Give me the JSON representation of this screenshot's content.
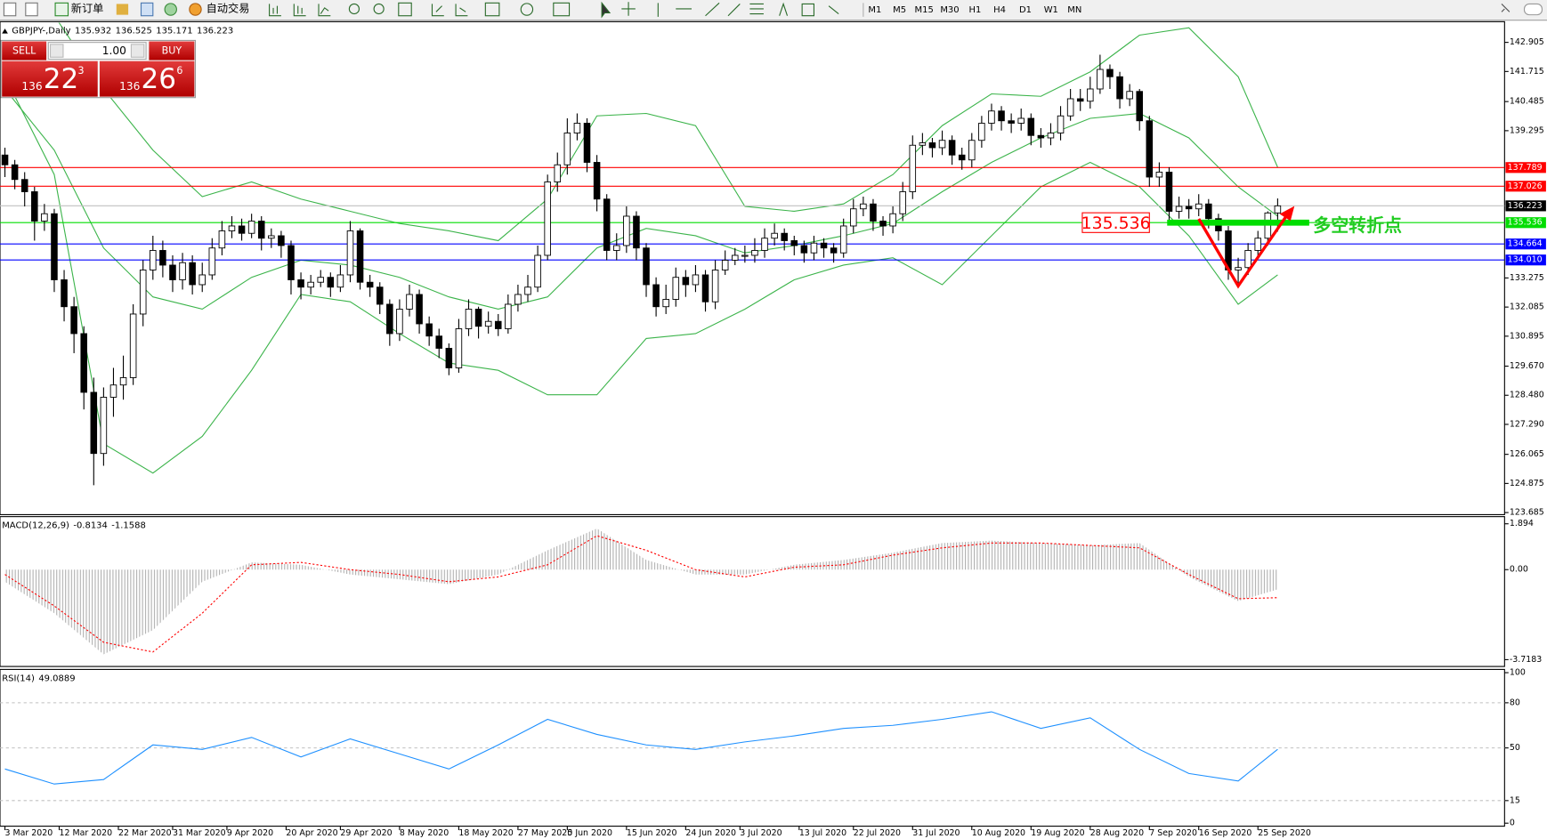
{
  "toolbar": {
    "new_order": "新订单",
    "auto_trading": "自动交易",
    "timeframes": [
      "M1",
      "M5",
      "M15",
      "M30",
      "H1",
      "H4",
      "D1",
      "W1",
      "MN"
    ]
  },
  "trade_panel": {
    "sell": "SELL",
    "buy": "BUY",
    "lots": "1.00",
    "bid": [
      "136",
      "22",
      "3"
    ],
    "ask": [
      "136",
      "26",
      "6"
    ]
  },
  "chart_data": [
    {
      "type": "candlestick",
      "title": "GBPJPY-,Daily",
      "header_values": [
        135.932,
        136.525,
        135.171,
        136.223
      ],
      "open": [
        138.3,
        137.9,
        137.3,
        136.8,
        135.6,
        135.9,
        133.2,
        132.1,
        131.0,
        128.6,
        126.1,
        128.4,
        128.9,
        129.2,
        131.8,
        133.6,
        134.4,
        133.8,
        133.2,
        133.9,
        133.0,
        133.4,
        134.5,
        135.2,
        135.4,
        135.1,
        135.6,
        134.9,
        135.0,
        134.6,
        133.2,
        132.9,
        133.1,
        133.3,
        132.9,
        133.4,
        135.2,
        133.1,
        132.9,
        132.2,
        131.0,
        132.0,
        132.6,
        131.4,
        130.9,
        130.4,
        129.6,
        131.2,
        132.0,
        131.3,
        131.5,
        131.2,
        132.2,
        132.6,
        132.9,
        134.2,
        137.2,
        137.9,
        139.2,
        139.6,
        138.0,
        136.5,
        134.4,
        134.6,
        135.8,
        134.5,
        133.0,
        132.1,
        132.4,
        133.3,
        133.0,
        133.4,
        132.3,
        133.6,
        134.0,
        134.2,
        134.2,
        134.4,
        134.9,
        135.1,
        134.8,
        134.6,
        134.3,
        134.7,
        134.5,
        134.3,
        135.4,
        136.1,
        136.3,
        135.6,
        135.4,
        135.9,
        136.8,
        138.7,
        138.8,
        138.6,
        138.9,
        138.3,
        138.1,
        138.9,
        139.6,
        140.1,
        139.7,
        139.6,
        139.8,
        139.1,
        139.0,
        139.2,
        139.9,
        140.6,
        140.5,
        141.0,
        141.8,
        141.5,
        140.6,
        140.9,
        139.7,
        137.4,
        137.6,
        136.0,
        136.2,
        136.1,
        136.3,
        135.7,
        135.2,
        133.6,
        133.7,
        134.4,
        134.9,
        135.932
      ],
      "high": [
        138.6,
        138.1,
        137.6,
        137.0,
        136.3,
        136.1,
        133.6,
        132.5,
        131.3,
        129.2,
        128.8,
        129.6,
        130.1,
        132.2,
        134.0,
        135.0,
        134.8,
        134.2,
        134.3,
        134.2,
        133.9,
        134.9,
        135.6,
        135.8,
        135.7,
        135.9,
        135.8,
        135.3,
        135.2,
        134.8,
        133.5,
        133.4,
        133.6,
        133.5,
        133.8,
        135.6,
        135.3,
        133.4,
        133.1,
        132.4,
        132.4,
        133.0,
        132.8,
        131.7,
        131.2,
        130.6,
        131.6,
        132.4,
        132.1,
        131.9,
        131.8,
        132.6,
        133.0,
        133.4,
        134.6,
        137.5,
        138.4,
        139.8,
        140.0,
        139.8,
        138.3,
        136.7,
        135.1,
        136.2,
        136.0,
        134.7,
        133.3,
        133.0,
        133.7,
        133.6,
        133.8,
        133.6,
        134.0,
        134.4,
        134.5,
        134.6,
        134.9,
        135.3,
        135.5,
        135.3,
        135.0,
        134.8,
        135.0,
        134.9,
        134.7,
        135.7,
        136.5,
        136.6,
        136.5,
        135.8,
        136.2,
        137.2,
        139.1,
        139.2,
        139.0,
        139.3,
        139.1,
        138.6,
        139.2,
        139.9,
        140.4,
        140.3,
        140.0,
        140.2,
        140.0,
        139.4,
        139.6,
        140.3,
        141.0,
        141.0,
        141.5,
        142.4,
        142.0,
        141.7,
        141.2,
        141.0,
        139.9,
        138.0,
        137.8,
        136.6,
        136.5,
        136.7,
        136.5,
        135.9,
        135.4,
        134.1,
        134.7,
        135.2,
        136.0,
        136.525
      ],
      "low": [
        137.4,
        136.9,
        136.2,
        134.8,
        135.2,
        132.7,
        131.5,
        130.2,
        127.9,
        124.8,
        125.6,
        127.6,
        128.3,
        128.9,
        131.3,
        133.2,
        133.3,
        132.7,
        132.8,
        132.6,
        132.7,
        133.2,
        134.2,
        134.9,
        134.8,
        134.9,
        134.4,
        134.5,
        134.1,
        132.6,
        132.4,
        132.6,
        132.9,
        132.5,
        132.7,
        133.1,
        132.8,
        132.5,
        131.8,
        130.5,
        130.7,
        131.7,
        131.0,
        130.5,
        130.0,
        129.3,
        129.4,
        130.9,
        130.8,
        131.0,
        130.9,
        131.0,
        131.9,
        132.3,
        132.7,
        134.0,
        136.8,
        137.5,
        138.9,
        137.6,
        136.0,
        134.0,
        134.0,
        134.3,
        134.0,
        132.5,
        131.7,
        131.8,
        132.1,
        132.5,
        132.7,
        131.9,
        132.0,
        133.4,
        133.8,
        133.9,
        133.9,
        134.1,
        134.6,
        134.4,
        134.2,
        133.9,
        134.0,
        134.1,
        133.9,
        134.1,
        135.1,
        135.8,
        135.2,
        135.0,
        135.1,
        135.6,
        136.5,
        138.3,
        138.2,
        138.3,
        137.9,
        137.7,
        137.8,
        138.6,
        139.3,
        139.3,
        139.2,
        139.3,
        138.7,
        138.6,
        138.7,
        138.9,
        139.7,
        140.1,
        140.2,
        140.8,
        141.0,
        140.2,
        140.3,
        139.3,
        137.0,
        137.0,
        135.6,
        135.7,
        135.7,
        135.8,
        135.3,
        134.8,
        133.2,
        132.9,
        133.4,
        134.1,
        134.6,
        135.171
      ],
      "close": [
        137.9,
        137.3,
        136.8,
        135.6,
        135.9,
        133.2,
        132.1,
        131.0,
        128.6,
        126.1,
        128.4,
        128.9,
        129.2,
        131.8,
        133.6,
        134.4,
        133.8,
        133.2,
        133.9,
        133.0,
        133.4,
        134.5,
        135.2,
        135.4,
        135.1,
        135.6,
        134.9,
        135.0,
        134.6,
        133.2,
        132.9,
        133.1,
        133.3,
        132.9,
        133.4,
        135.2,
        133.1,
        132.9,
        132.2,
        131.0,
        132.0,
        132.6,
        131.4,
        130.9,
        130.4,
        129.6,
        131.2,
        132.0,
        131.3,
        131.5,
        131.2,
        132.2,
        132.6,
        132.9,
        134.2,
        137.2,
        137.9,
        139.2,
        139.6,
        138.0,
        136.5,
        134.4,
        134.6,
        135.8,
        134.5,
        133.0,
        132.1,
        132.4,
        133.3,
        133.0,
        133.4,
        132.3,
        133.6,
        134.0,
        134.2,
        134.2,
        134.4,
        134.9,
        135.1,
        134.8,
        134.6,
        134.3,
        134.7,
        134.5,
        134.3,
        135.4,
        136.1,
        136.3,
        135.6,
        135.4,
        135.9,
        136.8,
        138.7,
        138.8,
        138.6,
        138.9,
        138.3,
        138.1,
        138.9,
        139.6,
        140.1,
        139.7,
        139.6,
        139.8,
        139.1,
        139.0,
        139.2,
        139.9,
        140.6,
        140.5,
        141.0,
        141.8,
        141.5,
        140.6,
        140.9,
        139.7,
        137.4,
        137.6,
        136.0,
        136.2,
        136.1,
        136.3,
        135.7,
        135.2,
        133.6,
        133.7,
        134.4,
        134.9,
        135.932,
        136.223
      ],
      "bands": {
        "color": "#3cb44b",
        "x": [
          0,
          5,
          10,
          15,
          20,
          25,
          30,
          35,
          40,
          45,
          50,
          55,
          60,
          65,
          70,
          75,
          80,
          85,
          90,
          95,
          100,
          105,
          110,
          115,
          120,
          125,
          129
        ],
        "upper": [
          144.5,
          144.0,
          141.0,
          138.5,
          136.6,
          137.2,
          136.5,
          136.0,
          135.5,
          135.2,
          134.8,
          136.5,
          139.9,
          140.0,
          139.5,
          136.2,
          136.0,
          136.3,
          137.5,
          139.5,
          140.8,
          140.7,
          141.7,
          143.2,
          143.5,
          141.5,
          137.8
        ],
        "middle": [
          141.0,
          138.5,
          134.5,
          132.5,
          132.0,
          133.3,
          134.0,
          133.8,
          133.3,
          132.5,
          132.0,
          132.5,
          134.5,
          135.3,
          135.0,
          134.3,
          134.6,
          135.0,
          135.5,
          136.8,
          138.0,
          139.0,
          139.8,
          140.0,
          139.0,
          137.0,
          135.8
        ],
        "lower": [
          141.5,
          137.5,
          126.5,
          125.3,
          126.8,
          129.5,
          132.6,
          132.3,
          131.0,
          129.8,
          129.5,
          128.5,
          128.5,
          130.8,
          131.0,
          132.0,
          133.2,
          133.8,
          134.1,
          133.0,
          135.0,
          137.0,
          138.0,
          137.0,
          135.0,
          132.2,
          133.4
        ]
      },
      "hlines": [
        {
          "value": 137.789,
          "color": "#ff0000"
        },
        {
          "value": 137.026,
          "color": "#ff0000"
        },
        {
          "value": 136.223,
          "color": "#c0c0c0",
          "tag_color": "#000000"
        },
        {
          "value": 135.536,
          "color": "#00dd00"
        },
        {
          "value": 134.664,
          "color": "#0000ff"
        },
        {
          "value": 134.01,
          "label": "134.010",
          "color": "#0000ff"
        }
      ],
      "turning_point_label": "多空转折点",
      "xlim": [
        -0.5,
        152
      ],
      "xticks": [
        {
          "value": 0,
          "label": "3 Mar 2020"
        },
        {
          "value": 5.5,
          "label": "12 Mar 2020"
        },
        {
          "value": 11.5,
          "label": "22 Mar 2020"
        },
        {
          "value": 17,
          "label": "31 Mar 2020"
        },
        {
          "value": 22.5,
          "label": "9 Apr 2020"
        },
        {
          "value": 28.5,
          "label": "20 Apr 2020"
        },
        {
          "value": 34,
          "label": "29 Apr 2020"
        },
        {
          "value": 40,
          "label": "8 May 2020"
        },
        {
          "value": 46,
          "label": "18 May 2020"
        },
        {
          "value": 52,
          "label": "27 May 2020"
        },
        {
          "value": 57,
          "label": "5 Jun 2020"
        },
        {
          "value": 63,
          "label": "15 Jun 2020"
        },
        {
          "value": 69,
          "label": "24 Jun 2020"
        },
        {
          "value": 74.5,
          "label": "3 Jul 2020"
        },
        {
          "value": 80.5,
          "label": "13 Jul 2020"
        },
        {
          "value": 86,
          "label": "22 Jul 2020"
        },
        {
          "value": 92,
          "label": "31 Jul 2020"
        },
        {
          "value": 98,
          "label": "10 Aug 2020"
        },
        {
          "value": 104,
          "label": "19 Aug 2020"
        },
        {
          "value": 110,
          "label": "28 Aug 2020"
        },
        {
          "value": 116,
          "label": "7 Sep 2020"
        },
        {
          "value": 121,
          "label": "16 Sep 2020"
        },
        {
          "value": 127,
          "label": "25 Sep 2020"
        }
      ],
      "ylim": [
        123.6,
        143.71
      ],
      "yticks": [
        142.905,
        141.715,
        140.485,
        139.295,
        133.275,
        132.085,
        130.895,
        {
          "value": 129.67,
          "label": "129.670"
        },
        {
          "value": 128.48,
          "label": "128.480"
        },
        {
          "value": 127.29,
          "label": "127.290"
        },
        126.065,
        124.875,
        123.685
      ]
    },
    {
      "type": "macd",
      "title": "MACD(12,26,9)",
      "header_values": [
        -0.8134,
        -1.1588
      ],
      "x": [
        0,
        5,
        10,
        15,
        20,
        25,
        30,
        35,
        40,
        45,
        50,
        55,
        60,
        65,
        70,
        75,
        80,
        85,
        90,
        95,
        100,
        105,
        110,
        115,
        120,
        125,
        129
      ],
      "histogram": [
        -0.5,
        -1.8,
        -3.5,
        -2.5,
        -0.5,
        0.3,
        0.2,
        -0.2,
        -0.4,
        -0.6,
        -0.2,
        0.8,
        1.7,
        0.4,
        -0.2,
        -0.2,
        0.2,
        0.4,
        0.7,
        1.1,
        1.2,
        1.1,
        1.0,
        1.1,
        -0.3,
        -1.3,
        -0.8134
      ],
      "signal": [
        -0.2,
        -1.5,
        -3.0,
        -3.4,
        -1.8,
        0.2,
        0.3,
        0.0,
        -0.2,
        -0.5,
        -0.3,
        0.2,
        1.4,
        0.8,
        0.0,
        -0.3,
        0.1,
        0.2,
        0.6,
        0.9,
        1.1,
        1.1,
        1.0,
        0.9,
        -0.2,
        -1.2,
        -1.1588
      ],
      "histogram_color": "#b0b0b0",
      "signal_color": "#ff0000",
      "ylim": [
        -4.0,
        2.15
      ],
      "yticks": [
        1.894,
        {
          "value": 0,
          "label": "0.00"
        },
        -3.7183
      ]
    },
    {
      "type": "rsi",
      "title": "RSI(14)",
      "header_values": [
        49.0889
      ],
      "x": [
        0,
        5,
        10,
        15,
        20,
        25,
        30,
        35,
        40,
        45,
        50,
        55,
        60,
        65,
        70,
        75,
        80,
        85,
        90,
        95,
        100,
        105,
        110,
        115,
        120,
        125,
        129
      ],
      "values": [
        36,
        26,
        29,
        52,
        49,
        57,
        44,
        56,
        46,
        36,
        52,
        69,
        59,
        52,
        49,
        54,
        58,
        63,
        65,
        69,
        74,
        63,
        70,
        49,
        33,
        28,
        49.0889
      ],
      "color": "#1e90ff",
      "ylim": [
        -2,
        101.5
      ],
      "yticks": [
        100,
        80,
        50,
        15,
        0
      ]
    }
  ]
}
